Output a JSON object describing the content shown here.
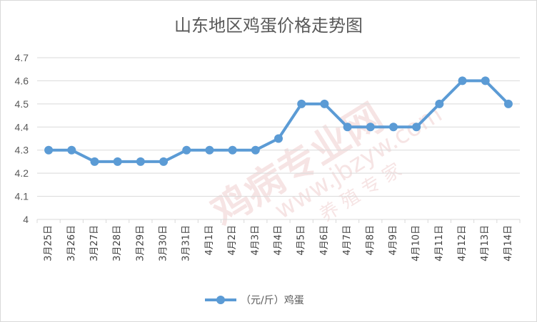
{
  "chart_data": {
    "type": "line",
    "title": "山东地区鸡蛋价格走势图",
    "categories": [
      "3月25日",
      "3月26日",
      "3月27日",
      "3月28日",
      "3月29日",
      "3月30日",
      "3月31日",
      "4月1日",
      "4月2日",
      "4月3日",
      "4月4日",
      "4月5日",
      "4月6日",
      "4月7日",
      "4月8日",
      "4月9日",
      "4月10日",
      "4月11日",
      "4月12日",
      "4月13日",
      "4月14日"
    ],
    "series": [
      {
        "name": "（元/斤）鸡蛋",
        "values": [
          4.3,
          4.3,
          4.25,
          4.25,
          4.25,
          4.25,
          4.3,
          4.3,
          4.3,
          4.3,
          4.35,
          4.5,
          4.5,
          4.4,
          4.4,
          4.4,
          4.4,
          4.5,
          4.6,
          4.6,
          4.5
        ]
      }
    ],
    "y_ticks": [
      "4.7",
      "4.6",
      "4.5",
      "4.4",
      "4.3",
      "4.2",
      "4.1",
      "4"
    ],
    "ylim": [
      4,
      4.7
    ],
    "grid": true,
    "legend_position": "bottom",
    "colors": {
      "series": "#5b9bd5",
      "grid": "#d9d9d9",
      "text": "#595959"
    }
  },
  "watermark": {
    "main": "鸡病专业网",
    "url": "www.jbzyw.com",
    "sub": "养 殖 专 家"
  }
}
